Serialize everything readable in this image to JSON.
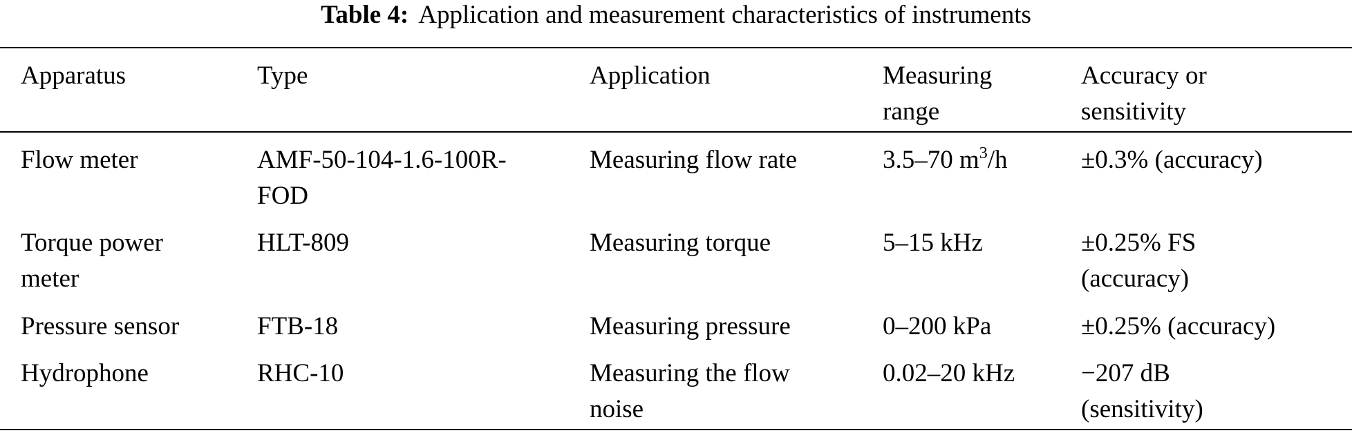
{
  "caption": {
    "label": "Table 4:",
    "text": "Application and measurement characteristics of instruments"
  },
  "header": {
    "apparatus": [
      "Apparatus"
    ],
    "type": [
      "Type"
    ],
    "application": [
      "Application"
    ],
    "measuring_range": [
      "Measuring",
      "range"
    ],
    "accuracy": [
      "Accuracy or",
      "sensitivity"
    ]
  },
  "rows": [
    {
      "apparatus": [
        "Flow meter"
      ],
      "type": [
        "AMF-50-104-1.6-100R-",
        "FOD"
      ],
      "application": [
        "Measuring flow rate"
      ],
      "range_main": "3.5–70 m",
      "range_sup": "3",
      "range_tail": "/h",
      "accuracy": [
        "±0.3% (accuracy)"
      ]
    },
    {
      "apparatus": [
        "Torque power",
        "meter"
      ],
      "type": [
        "HLT-809"
      ],
      "application": [
        "Measuring torque"
      ],
      "range": [
        "5–15 kHz"
      ],
      "accuracy": [
        "±0.25% FS",
        "(accuracy)"
      ]
    },
    {
      "apparatus": [
        "Pressure sensor"
      ],
      "type": [
        "FTB-18"
      ],
      "application": [
        "Measuring pressure"
      ],
      "range": [
        "0–200 kPa"
      ],
      "accuracy": [
        "±0.25% (accuracy)"
      ]
    },
    {
      "apparatus": [
        "Hydrophone"
      ],
      "type": [
        "RHC-10"
      ],
      "application": [
        "Measuring the flow",
        "noise"
      ],
      "range": [
        "0.02–20 kHz"
      ],
      "accuracy": [
        "−207 dB",
        "(sensitivity)"
      ]
    }
  ]
}
